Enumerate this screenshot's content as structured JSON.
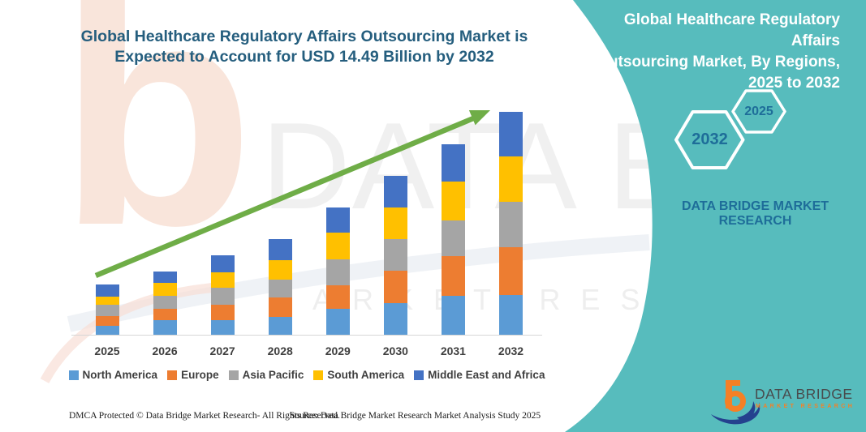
{
  "left_title_lines": [
    "Global Healthcare Regulatory Affairs Outsourcing Market is",
    "Expected to Account for USD 14.49 Billion by 2032"
  ],
  "right_panel": {
    "title_lines": [
      "Global Healthcare Regulatory Affairs",
      "Outsourcing Market, By Regions,",
      "2025 to 2032"
    ],
    "hexagon_far_label": "2032",
    "hexagon_near_label": "2025",
    "brand_lines": [
      "DATA BRIDGE MARKET",
      "RESEARCH"
    ]
  },
  "watermark": {
    "logo_glyph": "b",
    "big_text": "DATA BRIDGE",
    "sub_text": "MARKET RESEARCH"
  },
  "chart_data": {
    "type": "bar",
    "subtype": "stacked-vertical",
    "title": "Global Healthcare Regulatory Affairs Outsourcing Market is Expected to Account for USD 14.49 Billion by 2032",
    "unit": "USD Billion",
    "categories": [
      "2025",
      "2026",
      "2027",
      "2028",
      "2029",
      "2030",
      "2031",
      "2032"
    ],
    "stack_order": "bottom-to-top",
    "series": [
      {
        "name": "North America",
        "color": "#5B9BD5",
        "values": [
          0.58,
          0.93,
          0.95,
          1.14,
          1.7,
          2.05,
          2.55,
          2.58
        ]
      },
      {
        "name": "Europe",
        "color": "#ED7D31",
        "values": [
          0.62,
          0.74,
          1.0,
          1.26,
          1.53,
          2.11,
          2.58,
          3.13
        ]
      },
      {
        "name": "Asia Pacific",
        "color": "#A5A5A5",
        "values": [
          0.74,
          0.88,
          1.11,
          1.16,
          1.69,
          2.05,
          2.3,
          2.93
        ]
      },
      {
        "name": "South America",
        "color": "#FFC000",
        "values": [
          0.53,
          0.84,
          1.0,
          1.26,
          1.7,
          2.07,
          2.5,
          2.95
        ]
      },
      {
        "name": "Middle East and Africa",
        "color": "#4472C4",
        "values": [
          0.79,
          0.7,
          1.11,
          1.37,
          1.67,
          2.05,
          2.46,
          2.9
        ]
      }
    ],
    "ylim": [
      0,
      15
    ],
    "gridlines": false,
    "y_axis_labels": false,
    "legend_position": "bottom",
    "trend_arrow": true
  },
  "footer": {
    "dmca": "DMCA Protected © Data Bridge Market Research-  All Rights Reserved.",
    "source": "Source: Data Bridge Market Research  Market Analysis Study 2025"
  },
  "logo": {
    "name": "DATA BRIDGE",
    "tagline": "MARKET RESEARCH"
  },
  "colors": {
    "teal_panel": "#57BCBD",
    "title_blue": "#255E7E",
    "brand_blue": "#1E6D99",
    "arrow_green": "#6FAD47",
    "axis_gray": "#D6D6D6",
    "label_gray": "#3F3F3F",
    "logo_orange": "#F58025",
    "logo_navy": "#24418E"
  }
}
